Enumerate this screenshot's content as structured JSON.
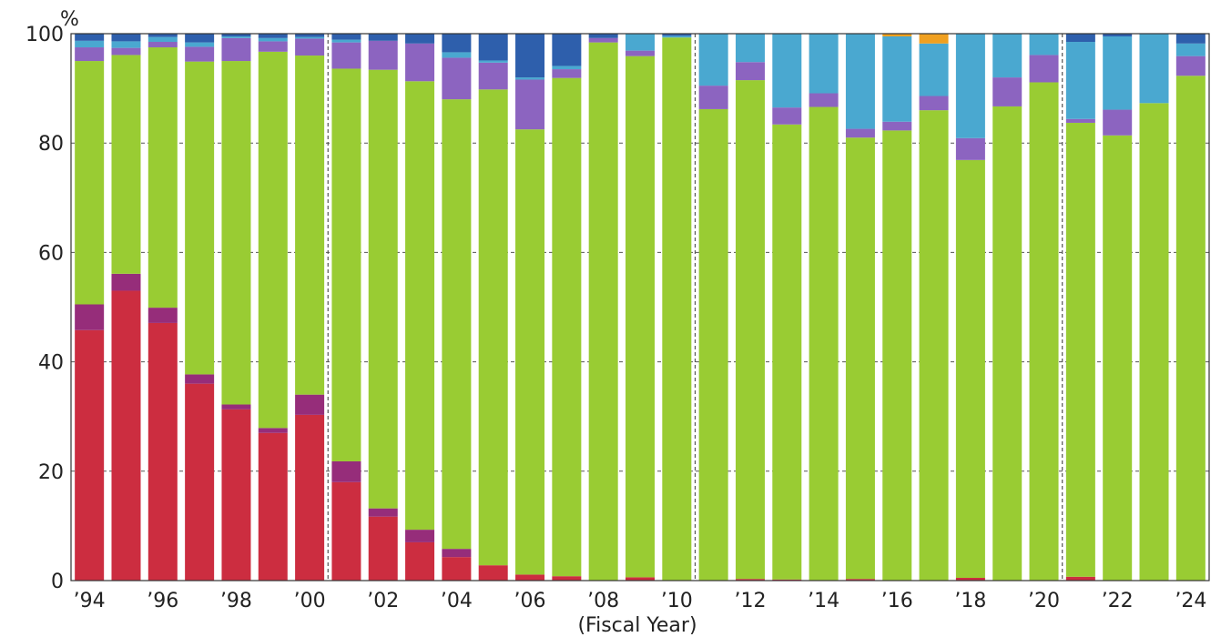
{
  "chart_data": {
    "type": "bar",
    "stacked": true,
    "y_unit_label": "%",
    "xlabel": "(Fiscal Year)",
    "ylabel": "",
    "ylim": [
      0,
      100
    ],
    "y_ticks": [
      0,
      20,
      40,
      60,
      80,
      100
    ],
    "y_tick_labels": [
      "0",
      "20",
      "40",
      "60",
      "80",
      "100"
    ],
    "grid": "horizontal dashed",
    "categories": [
      "1994",
      "1995",
      "1996",
      "1997",
      "1998",
      "1999",
      "2000",
      "2001",
      "2002",
      "2003",
      "2004",
      "2005",
      "2006",
      "2007",
      "2008",
      "2009",
      "2010",
      "2011",
      "2012",
      "2013",
      "2014",
      "2015",
      "2016",
      "2017",
      "2018",
      "2019",
      "2020",
      "2021",
      "2022",
      "2023",
      "2024"
    ],
    "x_tick_labels": [
      "’94",
      "",
      "’96",
      "",
      "’98",
      "",
      "’00",
      "",
      "’02",
      "",
      "’04",
      "",
      "’06",
      "",
      "’08",
      "",
      "’10",
      "",
      "’12",
      "",
      "’14",
      "",
      "’16",
      "",
      "’18",
      "",
      "’20",
      "",
      "’22",
      "",
      "’24"
    ],
    "period_dividers_after": [
      "2000",
      "2010",
      "2020"
    ],
    "series": [
      {
        "color": "#cc2d40",
        "values": [
          45.8,
          53.0,
          47.1,
          36.0,
          31.3,
          27.0,
          30.3,
          18.0,
          11.7,
          7.0,
          4.3,
          2.8,
          1.1,
          0.8,
          0.0,
          0.6,
          0.0,
          0.0,
          0.3,
          0.2,
          0.0,
          0.3,
          0.0,
          0.0,
          0.5,
          0.0,
          0.0,
          0.7,
          0.0,
          0.0,
          0.0
        ]
      },
      {
        "color": "#962d7a",
        "values": [
          4.7,
          3.1,
          2.8,
          1.7,
          0.9,
          0.9,
          3.7,
          3.8,
          1.5,
          2.3,
          1.5,
          0.0,
          0.0,
          0.0,
          0.0,
          0.0,
          0.0,
          0.0,
          0.0,
          0.0,
          0.0,
          0.0,
          0.0,
          0.0,
          0.0,
          0.0,
          0.0,
          0.0,
          0.0,
          0.0,
          0.0
        ]
      },
      {
        "color": "#99cc33",
        "values": [
          44.5,
          40.0,
          47.6,
          57.2,
          62.8,
          68.8,
          62.0,
          71.8,
          80.2,
          82.0,
          82.2,
          87.0,
          81.4,
          91.1,
          98.4,
          95.3,
          99.3,
          86.2,
          91.2,
          83.2,
          86.6,
          80.7,
          82.3,
          86.0,
          76.4,
          86.7,
          91.1,
          83.0,
          81.4,
          87.3,
          92.3
        ]
      },
      {
        "color": "#8c64c0",
        "values": [
          2.5,
          1.3,
          1.0,
          2.7,
          4.2,
          1.9,
          3.1,
          4.8,
          5.3,
          6.9,
          7.6,
          4.9,
          9.1,
          1.6,
          0.8,
          1.0,
          0.0,
          4.3,
          3.3,
          3.1,
          2.5,
          1.6,
          1.6,
          2.6,
          4.0,
          5.3,
          5.0,
          0.7,
          4.7,
          0.0,
          3.6
        ]
      },
      {
        "color": "#4aa8d0",
        "values": [
          1.2,
          1.2,
          0.9,
          0.8,
          0.3,
          0.6,
          0.3,
          0.5,
          0.0,
          0.0,
          1.0,
          0.4,
          0.4,
          0.6,
          0.0,
          3.1,
          0.3,
          9.5,
          5.3,
          13.5,
          10.9,
          17.4,
          15.6,
          9.6,
          19.1,
          8.0,
          3.9,
          14.1,
          13.4,
          12.7,
          2.3
        ]
      },
      {
        "color": "#2e5fac",
        "values": [
          1.3,
          1.4,
          1.0,
          1.6,
          0.5,
          0.8,
          0.6,
          1.1,
          1.3,
          1.8,
          3.4,
          4.9,
          8.0,
          5.9,
          0.8,
          0.0,
          0.4,
          0.0,
          0.0,
          0.0,
          0.0,
          0.0,
          0.0,
          0.0,
          0.0,
          0.0,
          0.0,
          1.5,
          0.5,
          0.0,
          1.8
        ]
      },
      {
        "color": "#f0a020",
        "values": [
          0,
          0,
          0,
          0,
          0,
          0,
          0,
          0,
          0,
          0,
          0,
          0,
          0,
          0,
          0,
          0,
          0,
          0,
          0,
          0,
          0,
          0,
          0.5,
          1.8,
          0,
          0,
          0,
          0,
          0,
          0,
          0
        ]
      }
    ]
  }
}
